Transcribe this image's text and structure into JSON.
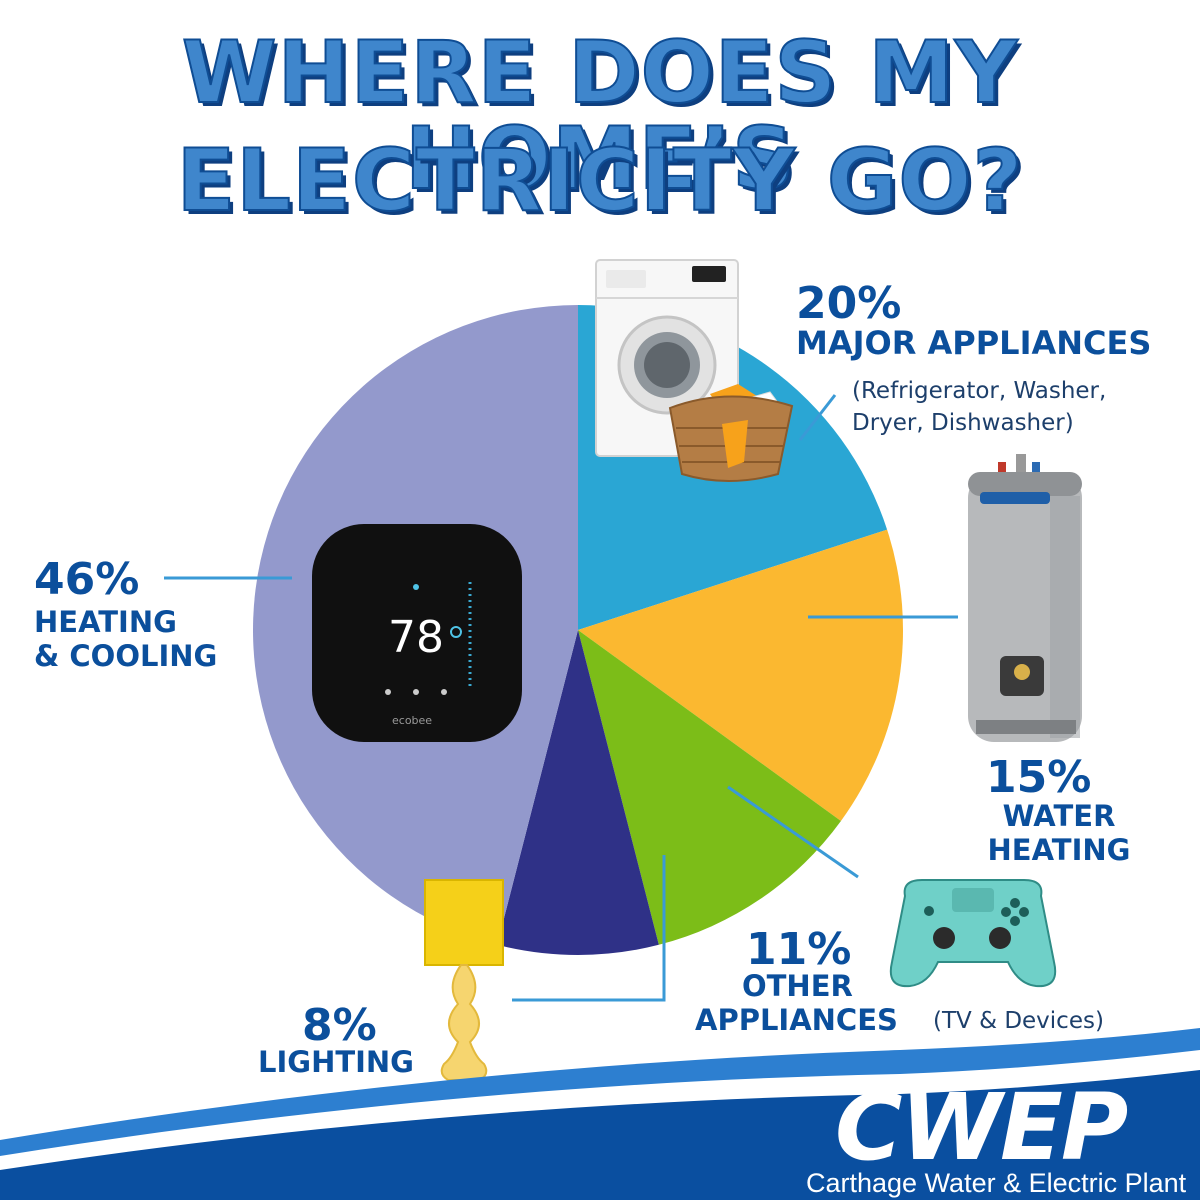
{
  "title": {
    "line1": "WHERE DOES MY HOME’S",
    "line2": "ELECTRICITY GO?"
  },
  "chart_data": {
    "type": "pie",
    "title": "WHERE DOES MY HOME’S ELECTRICITY GO?",
    "slices": [
      {
        "pct_label": "20%",
        "label": "MAJOR APPLIANCES",
        "value": 20,
        "color": "#2aa6d4",
        "note_lines": [
          "(Refrigerator, Washer,",
          "Dryer, Dishwasher)"
        ]
      },
      {
        "pct_label": "15%",
        "label": "WATER HEATING",
        "label_lines": [
          "WATER",
          "HEATING"
        ],
        "value": 15,
        "color": "#fbb830"
      },
      {
        "pct_label": "11%",
        "label": "OTHER APPLIANCES",
        "label_lines": [
          "OTHER",
          "APPLIANCES"
        ],
        "value": 11,
        "color": "#7cbd18",
        "note": "(TV & Devices)"
      },
      {
        "pct_label": "8%",
        "label": "LIGHTING",
        "value": 8,
        "color": "#2f3187"
      },
      {
        "pct_label": "46%",
        "label": "HEATING & COOLING",
        "label_lines": [
          "HEATING",
          "& COOLING"
        ],
        "value": 46,
        "color": "#9399cc"
      }
    ],
    "start_angle_deg": 0,
    "direction": "clockwise",
    "legend": "none"
  },
  "illustrations": {
    "thermostat_reading": "78",
    "thermostat_brand": "ecobee"
  },
  "footer": {
    "logo": "CWEP",
    "tagline": "Carthage Water & Electric Plant"
  },
  "colors": {
    "title_fill": "#3f86cc",
    "title_outline": "#0f4d94",
    "label_text": "#0b4f9c",
    "leader_line": "#3a9ad6",
    "footer_dark": "#0a4fa0",
    "footer_light": "#2d7fd0"
  },
  "icons": [
    "washing-machine-icon",
    "laundry-basket-icon",
    "water-heater-icon",
    "game-controller-icon",
    "lamp-icon",
    "thermostat-icon",
    "cwep-logo"
  ]
}
